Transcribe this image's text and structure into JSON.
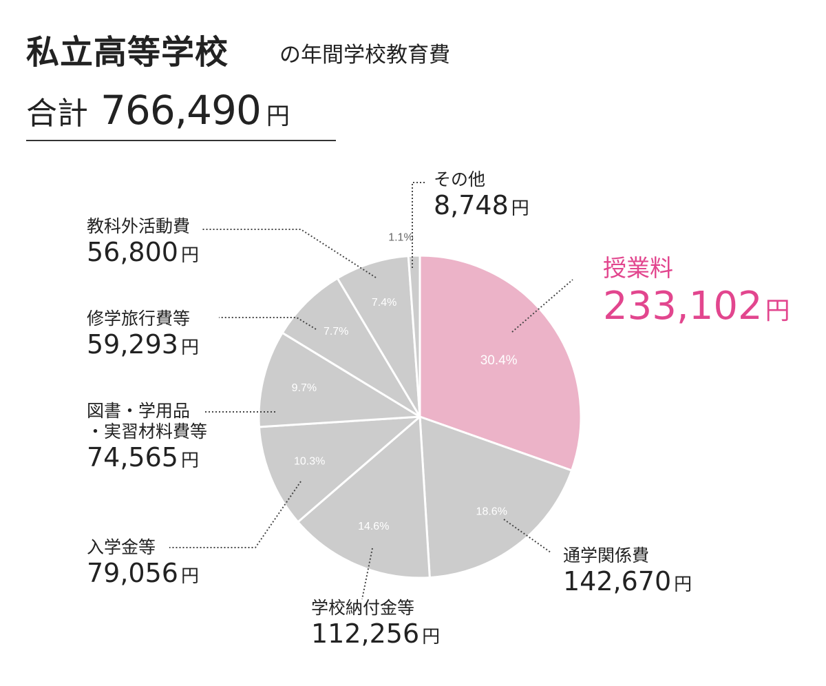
{
  "header": {
    "title_main": "私立高等学校",
    "title_sub": "の年間学校教育費",
    "total_label": "合計",
    "total_value": "766,490",
    "total_unit": "円"
  },
  "colors": {
    "highlight_fill": "#ecb3c8",
    "highlight_text": "#e2468e",
    "other_fill": "#cccccc",
    "slice_border": "#ffffff",
    "pct_text": "#ffffff",
    "pct_text_small": "#666666",
    "text": "#222222"
  },
  "chart_data": {
    "type": "pie",
    "title": "私立高等学校の年間学校教育費",
    "total": 766490,
    "unit": "円",
    "start_angle_deg": 0,
    "direction": "clockwise",
    "legend": "callouts",
    "slices": [
      {
        "label": "授業料",
        "value": 233102,
        "value_text": "233,102",
        "pct": "30.4%",
        "highlight": true
      },
      {
        "label": "通学関係費",
        "value": 142670,
        "value_text": "142,670",
        "pct": "18.6%"
      },
      {
        "label": "学校納付金等",
        "value": 112256,
        "value_text": "112,256",
        "pct": "14.6%"
      },
      {
        "label": "入学金等",
        "value": 79056,
        "value_text": "79,056",
        "pct": "10.3%"
      },
      {
        "label": "図書・学用品・実習材料費等",
        "label_line1": "図書・学用品",
        "label_line2": "・実習材料費等",
        "value": 74565,
        "value_text": "74,565",
        "pct": "9.7%"
      },
      {
        "label": "修学旅行費等",
        "value": 59293,
        "value_text": "59,293",
        "pct": "7.7%"
      },
      {
        "label": "教科外活動費",
        "value": 56800,
        "value_text": "56,800",
        "pct": "7.4%"
      },
      {
        "label": "その他",
        "value": 8748,
        "value_text": "8,748",
        "pct": "1.1%"
      }
    ]
  }
}
